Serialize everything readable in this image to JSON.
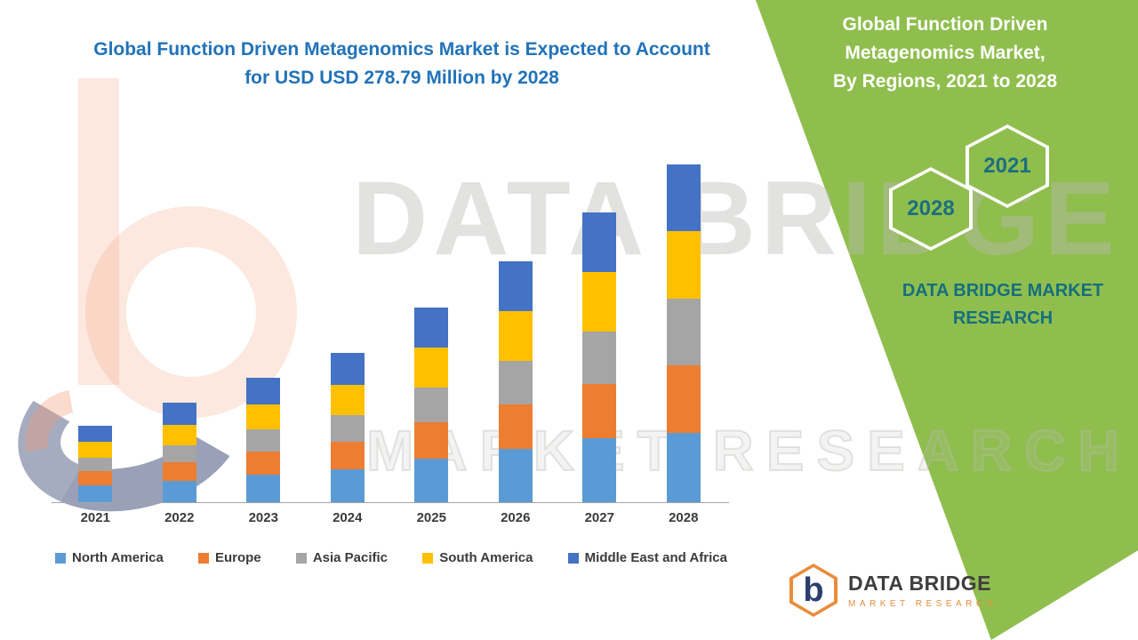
{
  "header": {
    "lines": [
      "Global Function Driven Metagenomics Market is Expected to Account",
      "for USD USD 278.79 Million by 2028"
    ],
    "accent_color": "#2173B8"
  },
  "side_panel": {
    "title_lines": [
      "Global Function Driven",
      "Metagenomics Market,",
      "By Regions, 2021 to 2028"
    ],
    "hex_back_year": "2028",
    "hex_front_year": "2021",
    "brand_text": "DATA BRIDGE MARKET RESEARCH",
    "green_color": "#8FBE4E",
    "teal_color": "#156F7D"
  },
  "watermark": {
    "line1": "DATA BRIDGE",
    "line2": "MARKET RESEARCH"
  },
  "logo": {
    "icon_letter": "b",
    "name": "DATA BRIDGE",
    "tagline": "MARKET RESEARCH"
  },
  "chart_data": {
    "type": "bar",
    "stacked": true,
    "title": "Global Function Driven Metagenomics Market, By Regions, 2021 to 2028",
    "unit": "USD Million",
    "categories": [
      "2021",
      "2022",
      "2023",
      "2024",
      "2025",
      "2026",
      "2027",
      "2028"
    ],
    "series": [
      {
        "name": "North America",
        "color": "#5B9BD5",
        "values": [
          14,
          18,
          23,
          27,
          36,
          44,
          53,
          57
        ]
      },
      {
        "name": "Europe",
        "color": "#ED7D31",
        "values": [
          12,
          15,
          19,
          23,
          30,
          37,
          45,
          56
        ]
      },
      {
        "name": "Asia Pacific",
        "color": "#A5A5A5",
        "values": [
          11,
          14,
          18,
          22,
          29,
          36,
          43,
          55
        ]
      },
      {
        "name": "South America",
        "color": "#FFC000",
        "values": [
          13,
          17,
          21,
          25,
          33,
          41,
          49,
          56
        ]
      },
      {
        "name": "Middle East and Africa",
        "color": "#4472C4",
        "values": [
          13,
          18,
          22,
          26,
          33,
          41,
          49,
          54.79
        ]
      }
    ],
    "totals": [
      63,
      82,
      103,
      123,
      161,
      199,
      239,
      278.79
    ],
    "ylim": [
      0,
      290
    ],
    "grid": false,
    "y_axis_visible": false,
    "legend_position": "bottom"
  }
}
